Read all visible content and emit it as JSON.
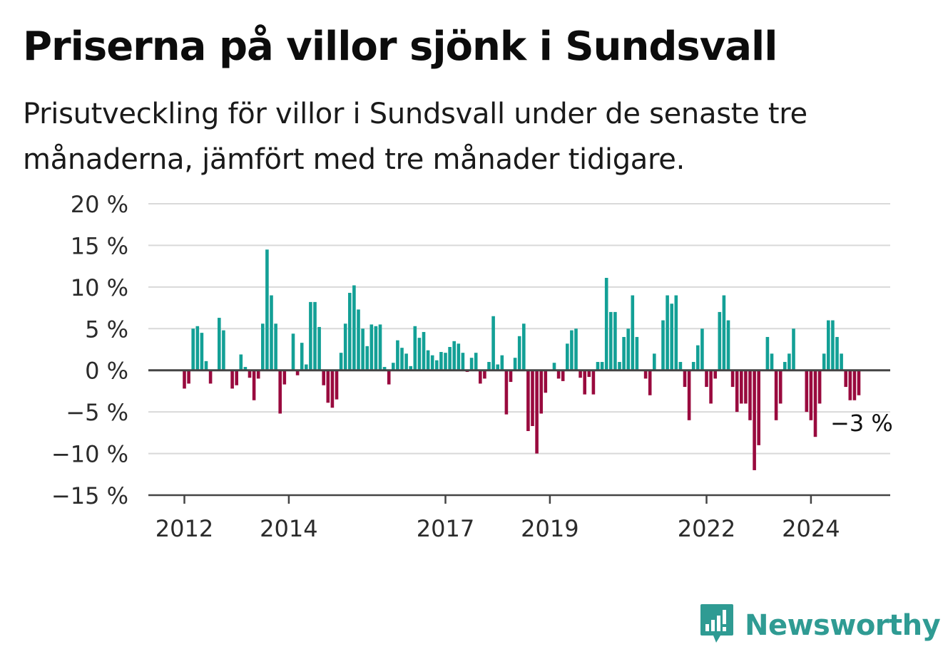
{
  "header": {
    "title": "Priserna på villor sjönk i Sundsvall",
    "subtitle": "Prisutveckling för villor i Sundsvall under de senaste tre månaderna, jämfört med tre månader tidigare."
  },
  "brand": {
    "name": "Newsworthy",
    "color": "#2f9b93",
    "icon": "bar-chart-speech-bubble-icon"
  },
  "colors": {
    "positive": "#13a096",
    "negative": "#990a3e",
    "grid": "#d9d9d9",
    "axis": "#444444"
  },
  "chart_data": {
    "type": "bar",
    "title": "Priserna på villor sjönk i Sundsvall",
    "subtitle": "Prisutveckling för villor i Sundsvall under de senaste tre månaderna, jämfört med tre månader tidigare.",
    "x_start": "2012-01",
    "frequency": "monthly",
    "ylim": [
      -15,
      20
    ],
    "yticks": [
      -15,
      -10,
      -5,
      0,
      5,
      10,
      15,
      20
    ],
    "ytick_labels": [
      "−15 %",
      "−10 %",
      "−5 %",
      "0 %",
      "5 %",
      "10 %",
      "15 %",
      "20 %"
    ],
    "xticks": [
      "2012",
      "2014",
      "2017",
      "2019",
      "2022",
      "2024"
    ],
    "grid": true,
    "legend": "none",
    "annotation": {
      "label": "−3 %",
      "at": "last"
    },
    "values": [
      -2.2,
      -1.6,
      5.0,
      5.3,
      4.5,
      1.1,
      -1.6,
      0.0,
      6.3,
      4.8,
      0.0,
      -2.2,
      -1.8,
      1.9,
      0.4,
      -0.9,
      -3.6,
      -1.0,
      5.6,
      14.5,
      9.0,
      5.6,
      -5.2,
      -1.7,
      0.1,
      4.4,
      -0.6,
      3.3,
      0.7,
      8.2,
      8.2,
      5.2,
      -1.8,
      -3.9,
      -4.5,
      -3.5,
      2.1,
      5.6,
      9.3,
      10.2,
      7.3,
      5.0,
      2.9,
      5.5,
      5.3,
      5.5,
      0.4,
      -1.7,
      0.9,
      3.6,
      2.7,
      2.0,
      0.5,
      5.3,
      3.9,
      4.6,
      2.4,
      1.8,
      1.2,
      2.2,
      2.1,
      2.8,
      3.5,
      3.2,
      2.1,
      -0.2,
      1.5,
      2.1,
      -1.6,
      -1.0,
      1.0,
      6.5,
      0.7,
      1.8,
      -5.3,
      -1.4,
      1.5,
      4.1,
      5.6,
      -7.3,
      -6.7,
      -10.0,
      -5.2,
      -2.7,
      0.0,
      0.9,
      -1.0,
      -1.3,
      3.2,
      4.8,
      5.0,
      -0.9,
      -2.9,
      -0.8,
      -2.9,
      1.0,
      1.0,
      11.1,
      7.0,
      7.0,
      1.0,
      4.0,
      5.0,
      9.0,
      4.0,
      0.0,
      -1.0,
      -3.0,
      2.0,
      0.0,
      6.0,
      9.0,
      8.0,
      9.0,
      1.0,
      -2.0,
      -6.0,
      1.0,
      3.0,
      5.0,
      -2.0,
      -4.0,
      -1.0,
      7.0,
      9.0,
      6.0,
      -2.0,
      -5.0,
      -4.0,
      -4.0,
      -6.0,
      -12.0,
      -9.0,
      0.0,
      4.0,
      2.0,
      -6.0,
      -4.0,
      1.0,
      2.0,
      5.0,
      0.0,
      0.0,
      -5.0,
      -6.0,
      -8.0,
      -4.0,
      2.0,
      6.0,
      6.0,
      4.0,
      2.0,
      -2.0,
      -3.6,
      -3.6,
      -3.0
    ]
  }
}
